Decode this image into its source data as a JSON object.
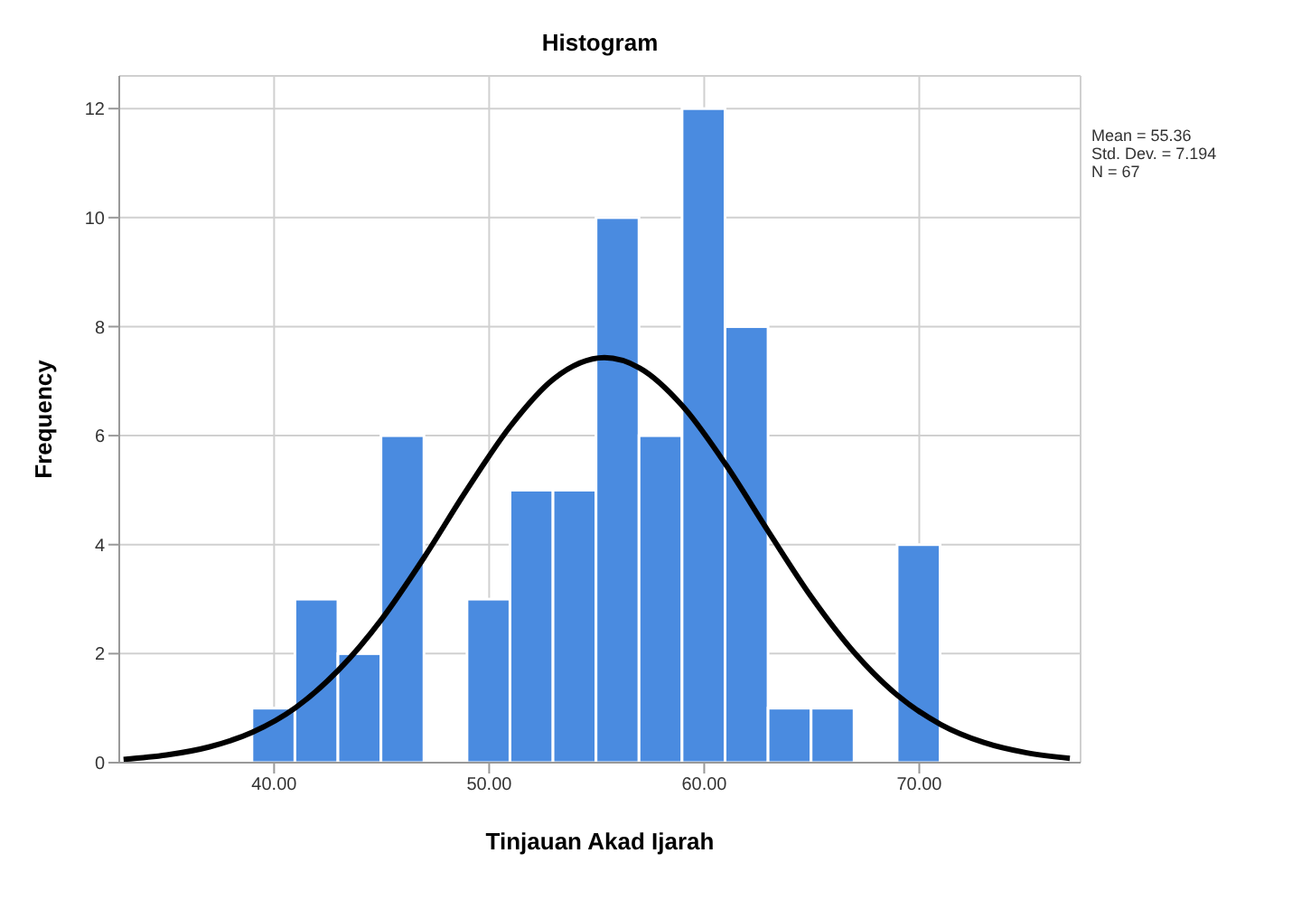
{
  "chart_data": {
    "type": "histogram",
    "title": "Histogram",
    "xlabel": "Tinjauan Akad Ijarah",
    "ylabel": "Frequency",
    "bins": [
      39,
      41,
      43,
      45,
      47,
      49,
      51,
      53,
      55,
      57,
      59,
      61,
      63,
      65,
      67,
      69,
      71
    ],
    "values": [
      1,
      3,
      2,
      6,
      0,
      3,
      5,
      5,
      10,
      6,
      12,
      8,
      1,
      1,
      0,
      4
    ],
    "color": "#4a8be0",
    "series": [
      {
        "type": "line",
        "color": "#000000",
        "x": [
          33,
          35,
          37,
          39,
          41,
          43,
          45,
          47,
          49,
          51,
          53,
          55.36,
          57,
          59,
          61,
          63,
          65,
          67,
          69,
          71,
          73,
          75,
          77
        ],
        "values": [
          0.06,
          0.14,
          0.29,
          0.56,
          1.01,
          1.7,
          2.63,
          3.78,
          5.03,
          6.18,
          7.04,
          7.43,
          7.24,
          6.54,
          5.47,
          4.23,
          3.03,
          2.01,
          1.23,
          0.7,
          0.37,
          0.18,
          0.08
        ]
      }
    ],
    "xlim": [
      32.8,
      77.5
    ],
    "xticks": [
      {
        "value": 40,
        "label": "40.00"
      },
      {
        "value": 50,
        "label": "50.00"
      },
      {
        "value": 60,
        "label": "60.00"
      },
      {
        "value": 70,
        "label": "70.00"
      }
    ],
    "ylim": [
      0,
      12.6
    ],
    "yticks": [
      0,
      2,
      4,
      6,
      8,
      10,
      12
    ],
    "grid": true,
    "annotations": [
      "Mean = 55.36",
      "Std. Dev. = 7.194",
      "N = 67"
    ]
  }
}
